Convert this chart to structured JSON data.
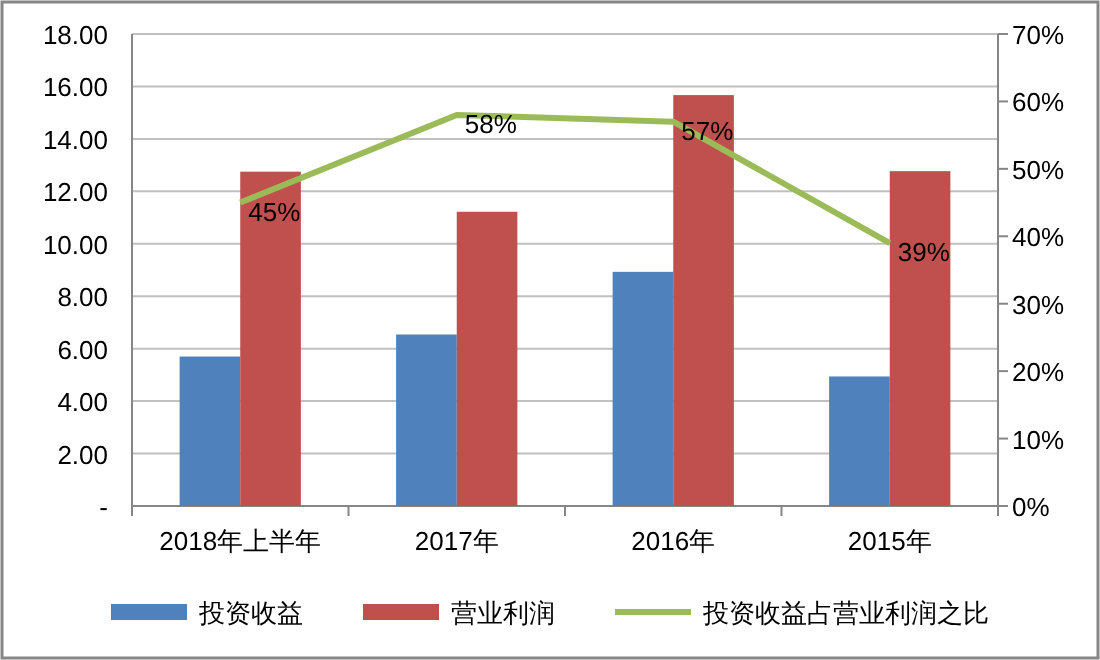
{
  "chart_data": {
    "type": "bar",
    "categories": [
      "2018年上半年",
      "2017年",
      "2016年",
      "2015年"
    ],
    "series": [
      {
        "name": "投资收益",
        "color": "#4f81bd",
        "values": [
          5.7,
          6.54,
          8.93,
          4.94
        ]
      },
      {
        "name": "营业利润",
        "color": "#c0504d",
        "values": [
          12.75,
          11.22,
          15.67,
          12.77
        ]
      },
      {
        "name": "投资收益占营业利润之比",
        "color": "#9bbb59",
        "type": "line",
        "axis": "y2",
        "values": [
          45,
          58,
          57,
          39
        ],
        "value_labels": [
          "45%",
          "58%",
          "57%",
          "39%"
        ]
      }
    ],
    "ylim": [
      0,
      18
    ],
    "yticks": [
      {
        "value": 0,
        "label": "-"
      },
      {
        "value": 2,
        "label": "2.00"
      },
      {
        "value": 4,
        "label": "4.00"
      },
      {
        "value": 6,
        "label": "6.00"
      },
      {
        "value": 8,
        "label": "8.00"
      },
      {
        "value": 10,
        "label": "10.00"
      },
      {
        "value": 12,
        "label": "12.00"
      },
      {
        "value": 14,
        "label": "14.00"
      },
      {
        "value": 16,
        "label": "16.00"
      },
      {
        "value": 18,
        "label": "18.00"
      }
    ],
    "y2lim": [
      0,
      70
    ],
    "y2ticks": [
      {
        "value": 0,
        "label": "0%"
      },
      {
        "value": 10,
        "label": "10%"
      },
      {
        "value": 20,
        "label": "20%"
      },
      {
        "value": 30,
        "label": "30%"
      },
      {
        "value": 40,
        "label": "40%"
      },
      {
        "value": 50,
        "label": "50%"
      },
      {
        "value": 60,
        "label": "60%"
      },
      {
        "value": 70,
        "label": "70%"
      }
    ],
    "grid": "y",
    "legend": "bottom",
    "marker": "none",
    "line_style": "solid"
  }
}
